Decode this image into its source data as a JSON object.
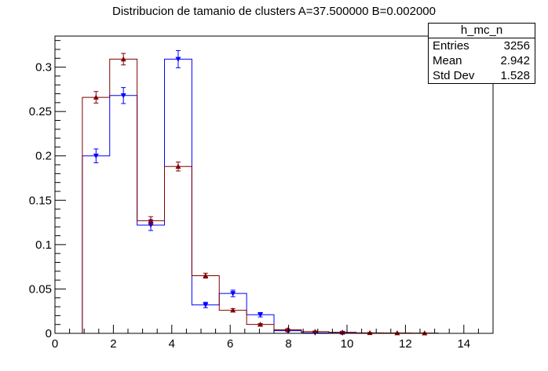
{
  "title": "Distribucion de tamanio de clusters A=37.500000  B=0.002000",
  "stats": {
    "name": "h_mc_n",
    "rows": [
      {
        "label": "Entries",
        "value": "3256"
      },
      {
        "label": "Mean",
        "value": "2.942"
      },
      {
        "label": "Std Dev",
        "value": "1.528"
      }
    ]
  },
  "chart_data": {
    "type": "histogram",
    "title": "Distribucion de tamanio de clusters A=37.500000  B=0.002000",
    "xlabel": "",
    "ylabel": "",
    "xlim": [
      0,
      15
    ],
    "ylim": [
      0,
      0.335
    ],
    "xticks": [
      0,
      2,
      4,
      6,
      8,
      10,
      12,
      14
    ],
    "yticks": [
      0,
      0.05,
      0.1,
      0.15,
      0.2,
      0.25,
      0.3
    ],
    "ytick_labels": [
      "0",
      "0.05",
      "0.1",
      "0.15",
      "0.2",
      "0.25",
      "0.3"
    ],
    "grid": false,
    "series": [
      {
        "color": "#0000ff",
        "marker": "triangle-down",
        "bins": [
          {
            "lo": 0.0,
            "hi": 0.938,
            "y": 0,
            "err": 0
          },
          {
            "lo": 0.938,
            "hi": 1.875,
            "y": 0.2,
            "err": 0.0078
          },
          {
            "lo": 1.875,
            "hi": 2.813,
            "y": 0.268,
            "err": 0.009
          },
          {
            "lo": 2.813,
            "hi": 3.75,
            "y": 0.122,
            "err": 0.0061
          },
          {
            "lo": 3.75,
            "hi": 4.688,
            "y": 0.309,
            "err": 0.0097
          },
          {
            "lo": 4.688,
            "hi": 5.625,
            "y": 0.032,
            "err": 0.0031
          },
          {
            "lo": 5.625,
            "hi": 6.563,
            "y": 0.045,
            "err": 0.0037
          },
          {
            "lo": 6.563,
            "hi": 7.5,
            "y": 0.021,
            "err": 0.0025
          },
          {
            "lo": 7.5,
            "hi": 8.438,
            "y": 0.003,
            "err": 0.001
          },
          {
            "lo": 8.438,
            "hi": 9.375,
            "y": 0.0005,
            "err": 0.0004
          },
          {
            "lo": 9.375,
            "hi": 10.313,
            "y": 0.0003,
            "err": 0.0003
          },
          {
            "lo": 10.313,
            "hi": 11.25,
            "y": 0,
            "err": 0
          },
          {
            "lo": 11.25,
            "hi": 12.188,
            "y": 0,
            "err": 0
          },
          {
            "lo": 12.188,
            "hi": 13.125,
            "y": 0,
            "err": 0
          },
          {
            "lo": 13.125,
            "hi": 14.063,
            "y": 0,
            "err": 0
          },
          {
            "lo": 14.063,
            "hi": 15.0,
            "y": 0,
            "err": 0
          }
        ]
      },
      {
        "color": "#800000",
        "marker": "triangle-up",
        "bins": [
          {
            "lo": 0.0,
            "hi": 0.938,
            "y": 0,
            "err": 0
          },
          {
            "lo": 0.938,
            "hi": 1.875,
            "y": 0.266,
            "err": 0.0065
          },
          {
            "lo": 1.875,
            "hi": 2.813,
            "y": 0.309,
            "err": 0.0065
          },
          {
            "lo": 2.813,
            "hi": 3.75,
            "y": 0.127,
            "err": 0.0045
          },
          {
            "lo": 3.75,
            "hi": 4.688,
            "y": 0.188,
            "err": 0.005
          },
          {
            "lo": 4.688,
            "hi": 5.625,
            "y": 0.065,
            "err": 0.0028
          },
          {
            "lo": 5.625,
            "hi": 6.563,
            "y": 0.026,
            "err": 0.0018
          },
          {
            "lo": 6.563,
            "hi": 7.5,
            "y": 0.01,
            "err": 0.0011
          },
          {
            "lo": 7.5,
            "hi": 8.438,
            "y": 0.004,
            "err": 0.0007
          },
          {
            "lo": 8.438,
            "hi": 9.375,
            "y": 0.002,
            "err": 0.0005
          },
          {
            "lo": 9.375,
            "hi": 10.313,
            "y": 0.0012,
            "err": 0.0004
          },
          {
            "lo": 10.313,
            "hi": 11.25,
            "y": 0.0006,
            "err": 0.0003
          },
          {
            "lo": 11.25,
            "hi": 12.188,
            "y": 0.0004,
            "err": 0.0002
          },
          {
            "lo": 12.188,
            "hi": 13.125,
            "y": 0.0003,
            "err": 0.0002
          },
          {
            "lo": 13.125,
            "hi": 14.063,
            "y": 0,
            "err": 0
          },
          {
            "lo": 14.063,
            "hi": 15.0,
            "y": 0,
            "err": 0
          }
        ]
      }
    ]
  }
}
